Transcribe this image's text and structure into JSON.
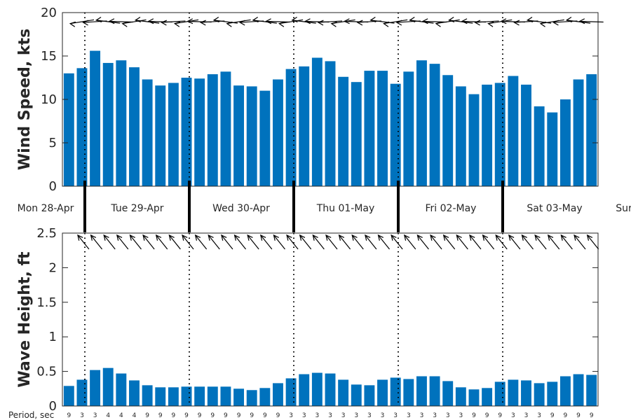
{
  "colors": {
    "bar": "#0072BD",
    "axis": "#262626",
    "arrow": "#000000"
  },
  "day_labels": [
    "Mon 28-Apr",
    "Tue 29-Apr",
    "Wed 30-Apr",
    "Thu 01-May",
    "Fri 02-May",
    "Sat 03-May",
    "Sur"
  ],
  "chart_data": [
    {
      "type": "bar",
      "name": "wind",
      "ylabel": "Wind Speed, kts",
      "ylim": [
        0,
        20
      ],
      "yticks": [
        "0",
        "5",
        "10",
        "15",
        "20"
      ],
      "values": [
        13.0,
        13.6,
        15.6,
        14.2,
        14.5,
        13.7,
        12.3,
        11.6,
        11.9,
        12.5,
        12.4,
        12.9,
        13.2,
        11.6,
        11.5,
        11.0,
        12.3,
        13.5,
        13.8,
        14.8,
        14.4,
        12.6,
        12.0,
        13.3,
        13.3,
        11.8,
        13.2,
        14.5,
        14.1,
        12.8,
        11.5,
        10.6,
        11.7,
        11.9,
        12.7,
        11.7,
        9.2,
        8.5,
        10.0,
        12.3,
        12.9
      ],
      "direction_arrows": "pointing left (westward) at each 3-hour step",
      "grid": false
    },
    {
      "type": "bar",
      "name": "waves",
      "ylabel": "Wave Height, ft",
      "ylim": [
        0,
        2.5
      ],
      "yticks": [
        "0",
        "0.5",
        "1",
        "1.5",
        "2",
        "2.5"
      ],
      "values": [
        0.29,
        0.38,
        0.52,
        0.55,
        0.47,
        0.37,
        0.3,
        0.27,
        0.27,
        0.28,
        0.28,
        0.28,
        0.28,
        0.25,
        0.23,
        0.26,
        0.33,
        0.4,
        0.46,
        0.48,
        0.47,
        0.38,
        0.31,
        0.3,
        0.38,
        0.41,
        0.39,
        0.43,
        0.43,
        0.36,
        0.27,
        0.24,
        0.26,
        0.35,
        0.38,
        0.37,
        0.33,
        0.35,
        0.43,
        0.46,
        0.45
      ],
      "period_title": "Period, sec",
      "periods": [
        "9",
        "3",
        "3",
        "4",
        "4",
        "4",
        "9",
        "9",
        "9",
        "9",
        "9",
        "9",
        "9",
        "9",
        "9",
        "9",
        "9",
        "3",
        "3",
        "3",
        "3",
        "3",
        "3",
        "3",
        "3",
        "3",
        "3",
        "3",
        "3",
        "3",
        "3",
        "9",
        "9",
        "9",
        "3",
        "3",
        "3",
        "9",
        "9",
        "9",
        "9"
      ],
      "direction_arrows": "pointing up-left (north-westward) at each 3-hour step",
      "grid": false
    }
  ]
}
